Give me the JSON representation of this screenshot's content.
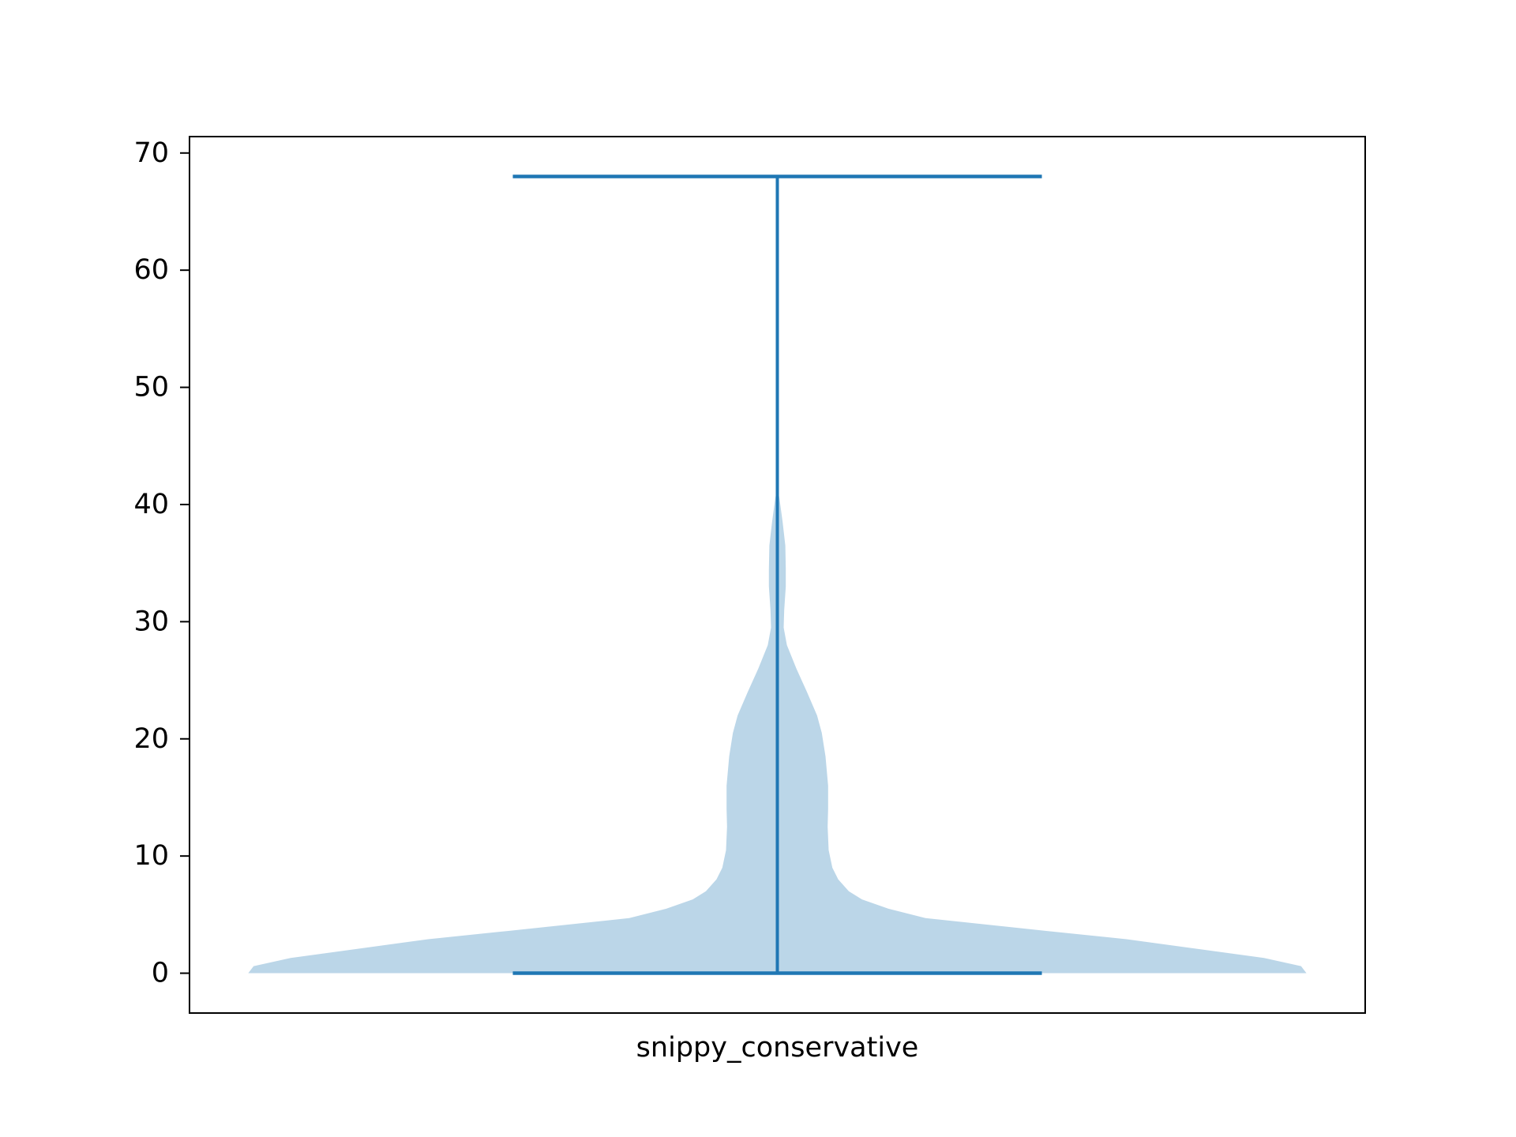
{
  "chart_data": {
    "type": "violin",
    "title": "",
    "xlabel": "",
    "ylabel": "",
    "categories": [
      "snippy_conservative"
    ],
    "ylim": [
      -3.4,
      71.4
    ],
    "y_ticks": [
      0,
      10,
      20,
      30,
      40,
      50,
      60,
      70
    ],
    "grid": false,
    "colors": {
      "body": "#1f77b4",
      "body_opacity": 0.3,
      "lines": "#1f77b4"
    },
    "series": [
      {
        "category": "snippy_conservative",
        "min": 0,
        "max": 68,
        "density_profile": [
          {
            "y": 0.0,
            "w": 1.0
          },
          {
            "y": 0.6,
            "w": 0.99
          },
          {
            "y": 1.3,
            "w": 0.92
          },
          {
            "y": 2.1,
            "w": 0.79
          },
          {
            "y": 2.9,
            "w": 0.66
          },
          {
            "y": 3.6,
            "w": 0.51
          },
          {
            "y": 4.7,
            "w": 0.28
          },
          {
            "y": 5.5,
            "w": 0.21
          },
          {
            "y": 6.3,
            "w": 0.16
          },
          {
            "y": 7.0,
            "w": 0.135
          },
          {
            "y": 8.0,
            "w": 0.115
          },
          {
            "y": 9.0,
            "w": 0.104
          },
          {
            "y": 10.5,
            "w": 0.097
          },
          {
            "y": 12.5,
            "w": 0.095
          },
          {
            "y": 14.0,
            "w": 0.096
          },
          {
            "y": 16.0,
            "w": 0.096
          },
          {
            "y": 18.5,
            "w": 0.091
          },
          {
            "y": 20.5,
            "w": 0.084
          },
          {
            "y": 22.0,
            "w": 0.075
          },
          {
            "y": 24.0,
            "w": 0.056
          },
          {
            "y": 26.0,
            "w": 0.036
          },
          {
            "y": 28.0,
            "w": 0.018
          },
          {
            "y": 29.5,
            "w": 0.012
          },
          {
            "y": 31.0,
            "w": 0.013
          },
          {
            "y": 33.0,
            "w": 0.016
          },
          {
            "y": 34.5,
            "w": 0.016
          },
          {
            "y": 36.5,
            "w": 0.015
          },
          {
            "y": 38.5,
            "w": 0.01
          },
          {
            "y": 40.5,
            "w": 0.004
          },
          {
            "y": 41.5,
            "w": 0.0
          }
        ]
      }
    ]
  }
}
